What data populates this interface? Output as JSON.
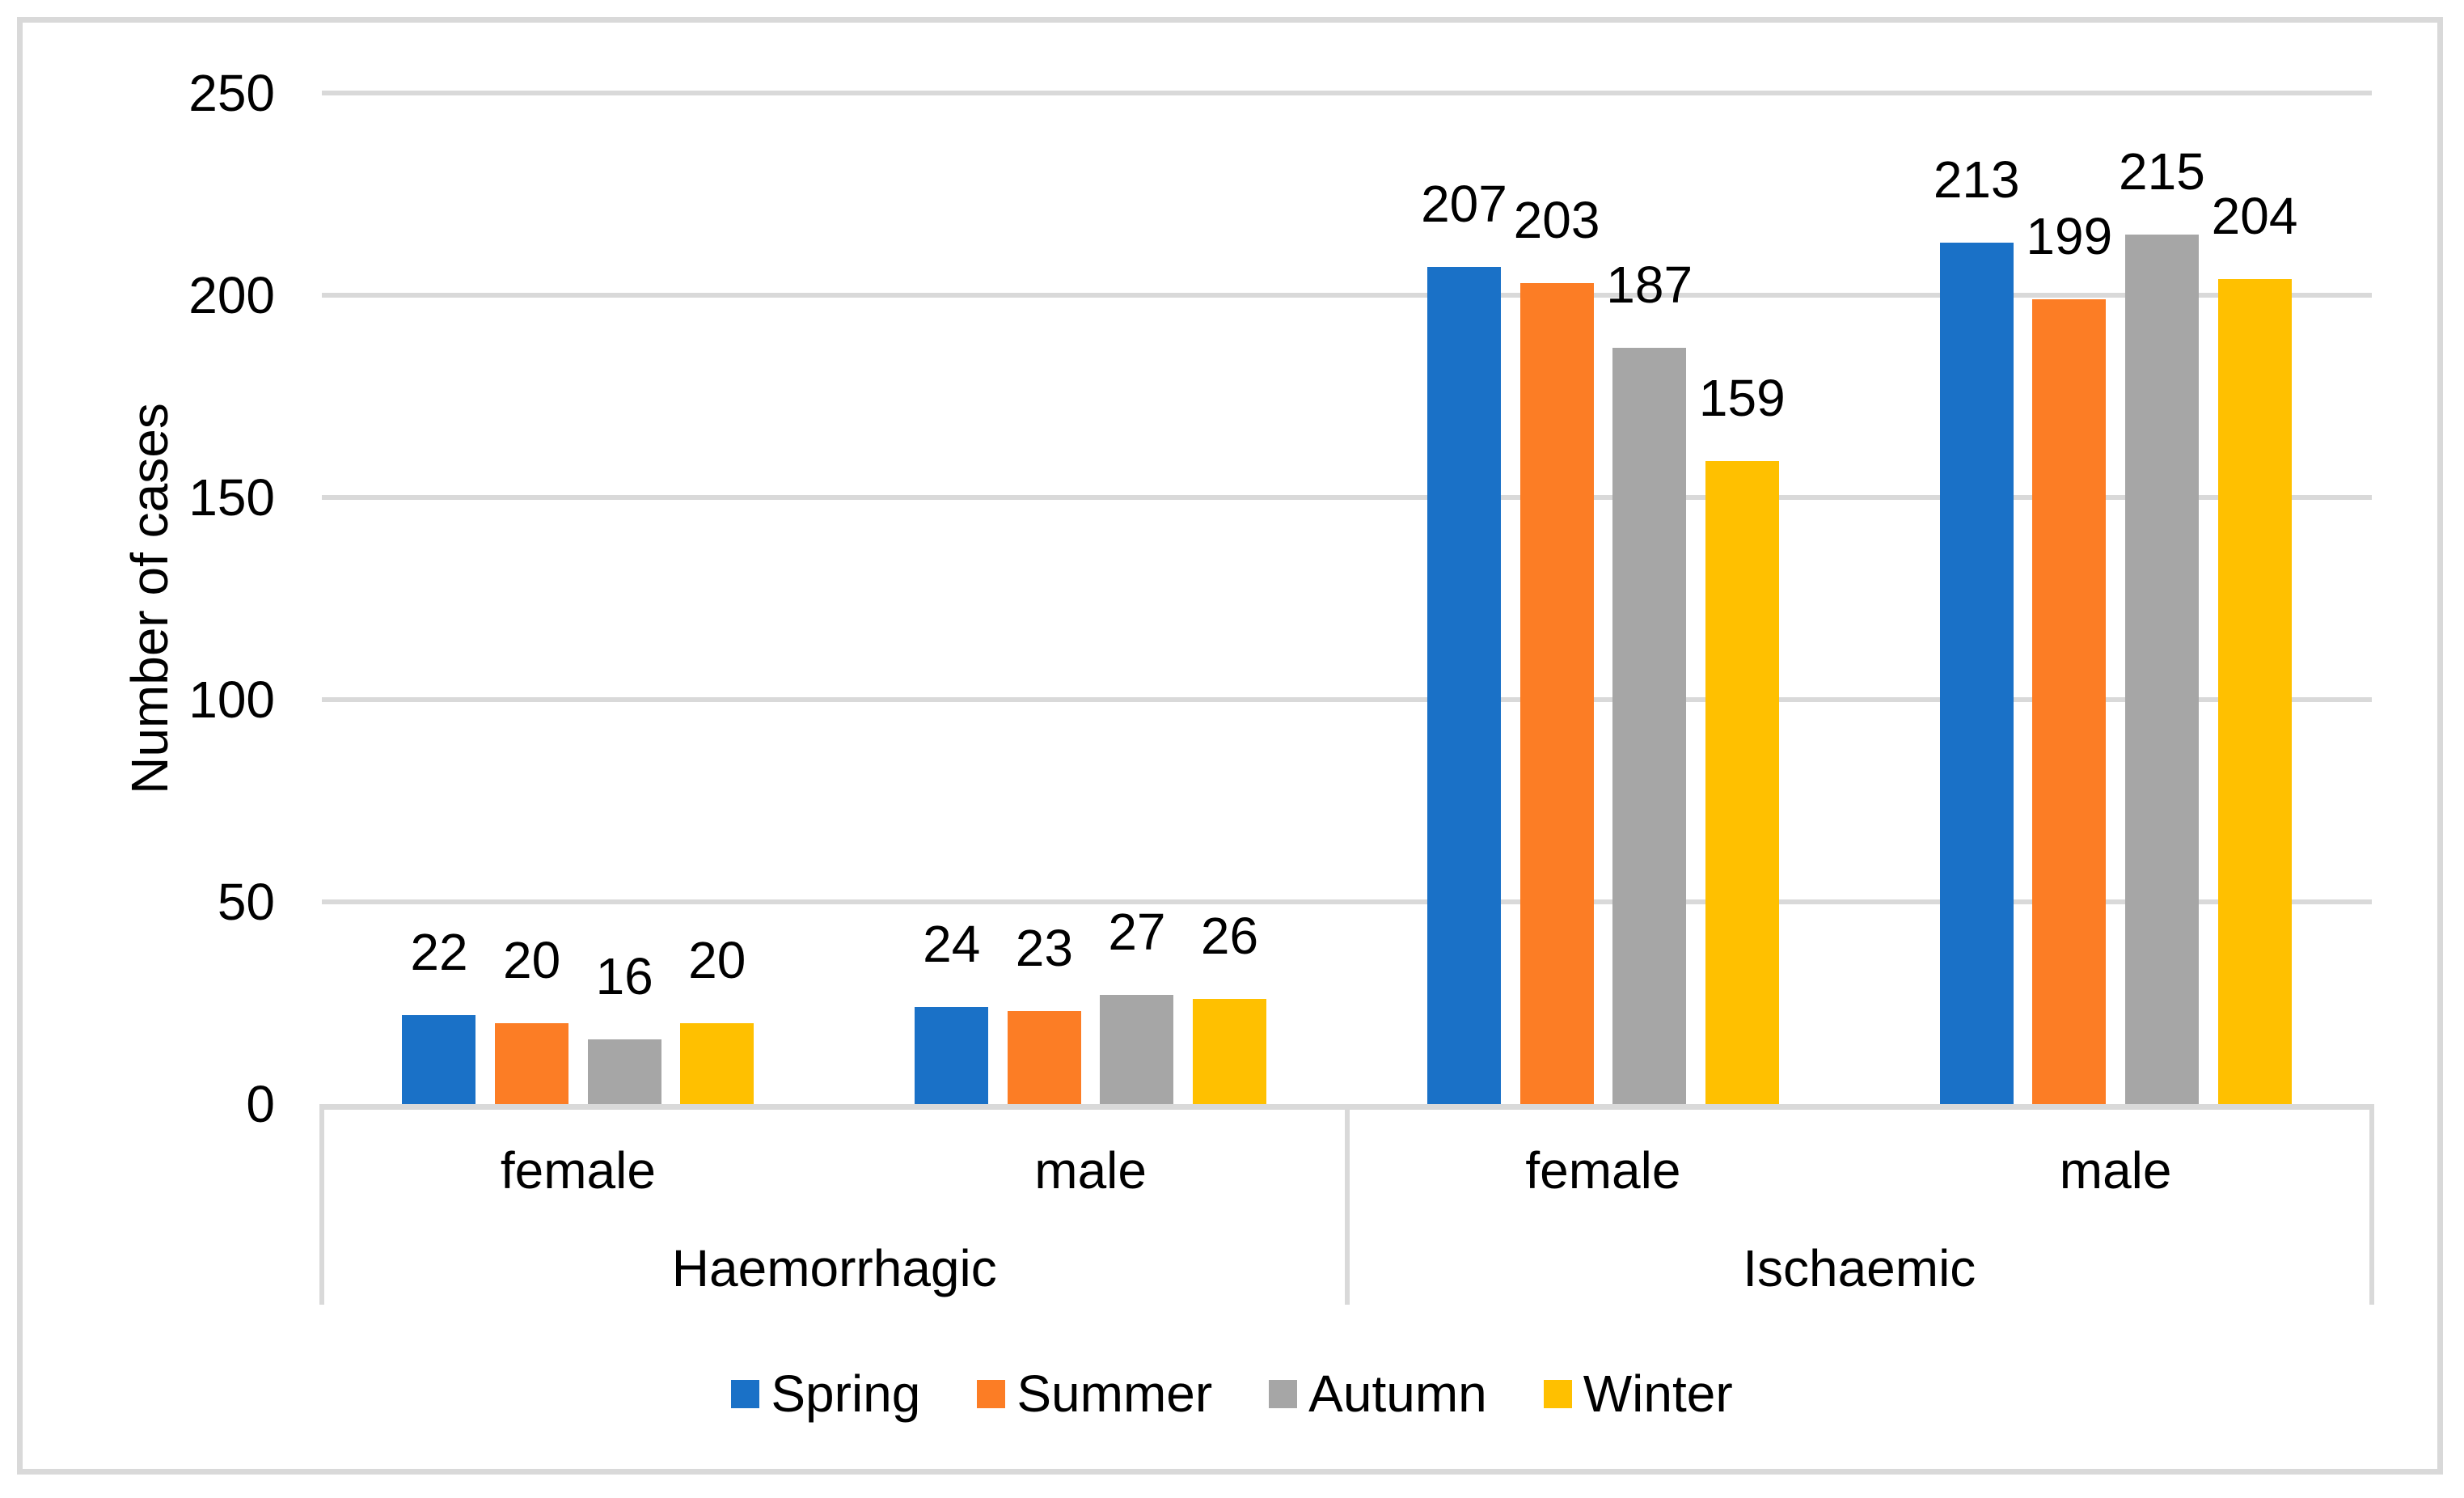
{
  "chart_data": {
    "type": "bar",
    "title": "",
    "ylabel": "Number of cases",
    "xlabel": "",
    "ylim": [
      0,
      250
    ],
    "yticks": [
      0,
      50,
      100,
      150,
      200,
      250
    ],
    "grid": true,
    "legend_position": "bottom",
    "categories": [
      {
        "group": "Haemorrhagic",
        "label": "female"
      },
      {
        "group": "Haemorrhagic",
        "label": "male"
      },
      {
        "group": "Ischaemic",
        "label": "female"
      },
      {
        "group": "Ischaemic",
        "label": "male"
      }
    ],
    "group_labels": [
      "Haemorrhagic",
      "Ischaemic"
    ],
    "series": [
      {
        "name": "Spring",
        "color": "#1A71C7",
        "values": [
          22,
          24,
          207,
          213
        ]
      },
      {
        "name": "Summer",
        "color": "#FC7D25",
        "values": [
          20,
          23,
          203,
          199
        ]
      },
      {
        "name": "Autumn",
        "color": "#A6A6A6",
        "values": [
          16,
          27,
          187,
          215
        ]
      },
      {
        "name": "Winter",
        "color": "#FFC000",
        "values": [
          20,
          26,
          159,
          204
        ]
      }
    ],
    "data_labels_shown": true,
    "colors": {
      "gridline": "#D9D9D9",
      "axis_line": "#D9D9D9",
      "frame_border": "#D9D9D9",
      "text": "#000000",
      "background": "#FFFFFF"
    }
  }
}
